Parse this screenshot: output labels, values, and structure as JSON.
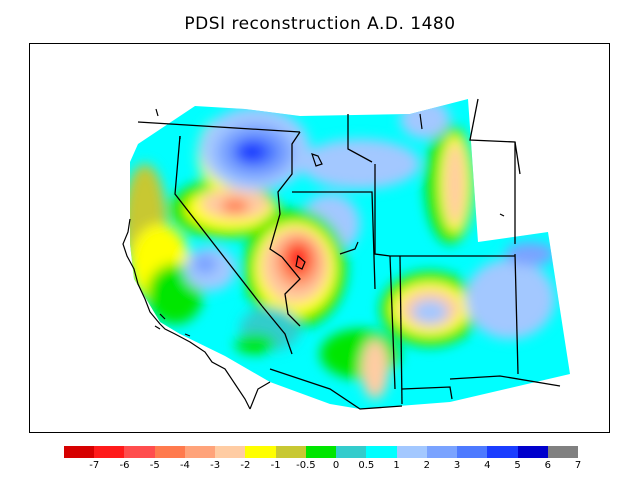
{
  "title": "PDSI reconstruction A.D. 1480",
  "legend": {
    "colors": [
      "#d60000",
      "#ff1a1a",
      "#ff4d4d",
      "#ff7a4d",
      "#ffa37a",
      "#ffcca3",
      "#ffff00",
      "#c8c832",
      "#00e600",
      "#33cccc",
      "#00ffff",
      "#a3c8ff",
      "#7aa3ff",
      "#4d7aff",
      "#1a3dff",
      "#0000cc",
      "#808080"
    ],
    "labels": [
      "-7",
      "-6",
      "-5",
      "-4",
      "-3",
      "-2",
      "-1",
      "-0.5",
      "0",
      "0.5",
      "1",
      "2",
      "3",
      "4",
      "5",
      "6",
      "7"
    ]
  }
}
